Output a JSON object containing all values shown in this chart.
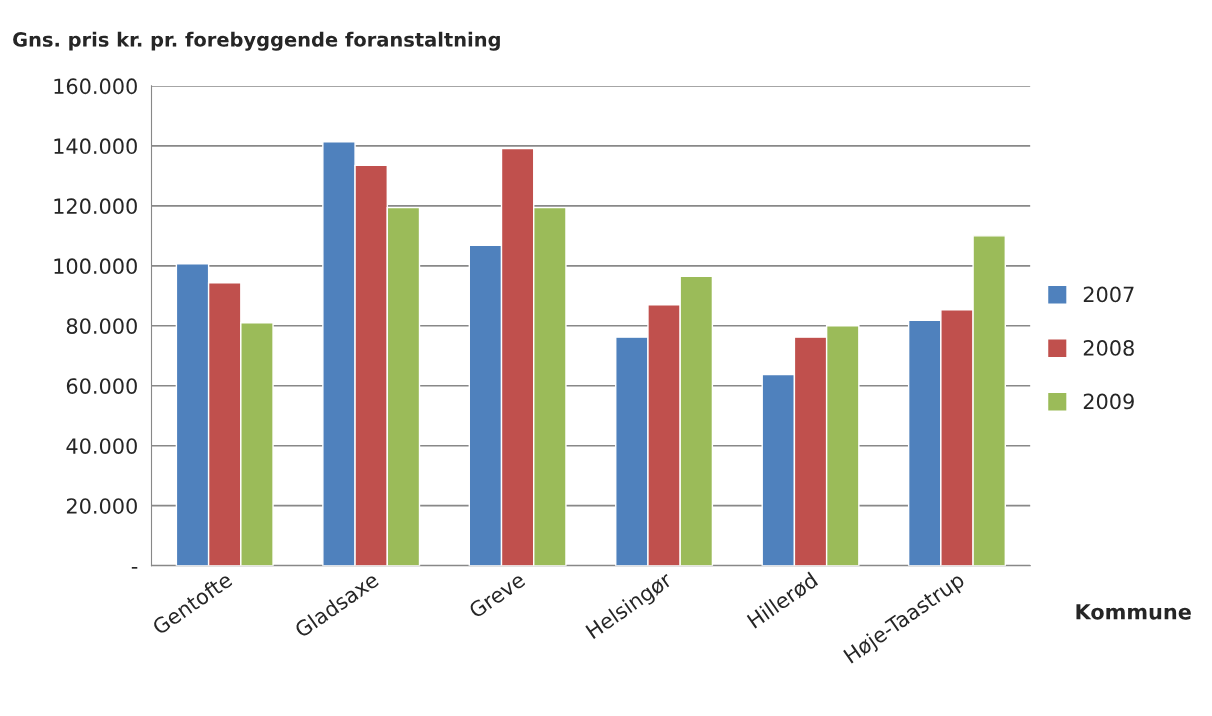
{
  "chart_data": {
    "type": "bar",
    "title": "Gns. pris kr. pr. forebyggende foranstaltning",
    "xlabel": "Kommune",
    "categories": [
      "Gentofte",
      "Gladsaxe",
      "Greve",
      "Helsingør",
      "Hillerød",
      "Høje-Taastrup"
    ],
    "series": [
      {
        "name": "2007",
        "color": "#4f81bd",
        "values": [
          100.7,
          141.4,
          106.8,
          76.2,
          63.7,
          81.8
        ]
      },
      {
        "name": "2008",
        "color": "#c0504d",
        "values": [
          94.3,
          133.5,
          139.1,
          87.0,
          76.2,
          85.3
        ]
      },
      {
        "name": "2009",
        "color": "#9bbb59",
        "values": [
          81.0,
          119.4,
          119.4,
          96.5,
          80.0,
          110.0
        ]
      }
    ],
    "ylim": [
      0,
      160
    ],
    "yticks": [
      {
        "value": 0,
        "label": "-"
      },
      {
        "value": 20,
        "label": "20.000"
      },
      {
        "value": 40,
        "label": "40.000"
      },
      {
        "value": 60,
        "label": "60.000"
      },
      {
        "value": 80,
        "label": "80.000"
      },
      {
        "value": 100,
        "label": "100.000"
      },
      {
        "value": 120,
        "label": "120.000"
      },
      {
        "value": 140,
        "label": "140.000"
      },
      {
        "value": 160,
        "label": "160.000"
      }
    ],
    "grid": "y",
    "legend": "right"
  }
}
